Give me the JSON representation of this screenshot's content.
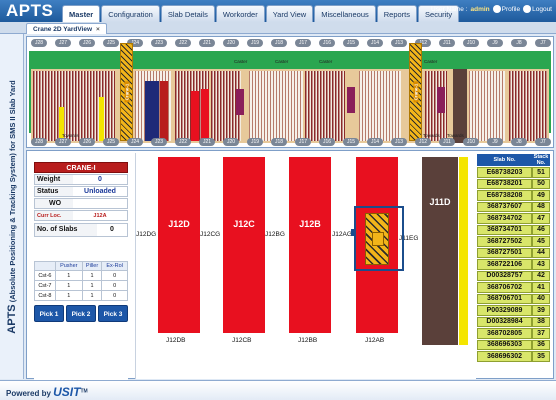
{
  "app": {
    "logo": "APTS"
  },
  "nav": {
    "tabs": [
      {
        "label": "Master",
        "active": true
      },
      {
        "label": "Configuration"
      },
      {
        "label": "Slab Details"
      },
      {
        "label": "Workorder"
      },
      {
        "label": "Yard View"
      },
      {
        "label": "Miscellaneous"
      },
      {
        "label": "Reports"
      },
      {
        "label": "Security"
      }
    ]
  },
  "user": {
    "label": "User Name :",
    "name": "admin",
    "profile": "Profile",
    "logout": "Logout"
  },
  "subtab": {
    "label": "Crane 2D YardView",
    "close": "×"
  },
  "side_title": {
    "brand": "APTS",
    "text": " (Absolute Positioning & Tracking System) for SMS II Slab Yard"
  },
  "yard": {
    "top_labels": [
      "J28",
      "J27",
      "J26",
      "J25",
      "J24",
      "J23",
      "J22",
      "J21",
      "J20",
      "J19",
      "J18",
      "J17",
      "J16",
      "J15",
      "J14",
      "J13",
      "J12",
      "J11",
      "J10",
      "J9",
      "J8",
      "J7"
    ],
    "bottom_labels": [
      "J28",
      "J27",
      "J26",
      "J25",
      "J24",
      "J23",
      "J22",
      "J21",
      "J20",
      "J19",
      "J18",
      "J17",
      "J16",
      "J15",
      "J14",
      "J13",
      "J12",
      "J11",
      "J10",
      "J9",
      "J8",
      "J7"
    ],
    "caster_labels": [
      "Caster",
      "Caster",
      "Caster",
      "Caster"
    ],
    "crane_labels": [
      "Crane-1",
      "Crane-1"
    ],
    "towards_labels": [
      "Towards",
      "Towards",
      "Towards"
    ]
  },
  "crane_info": {
    "title": "CRANE-I",
    "rows": [
      {
        "key": "Weight",
        "value": "0"
      },
      {
        "key": "Status",
        "value": "Unloaded"
      },
      {
        "key": "WO",
        "value": ""
      }
    ],
    "curr_loc_key": "Curr Loc.",
    "curr_loc_value": "J12A",
    "slabs_key": "No. of Slabs",
    "slabs_value": "0"
  },
  "cst_table": {
    "headers": [
      "",
      "Pusher",
      "Piller",
      "Ex-Rol"
    ],
    "rows": [
      [
        "Cst-6",
        "1",
        "1",
        "0"
      ],
      [
        "Cst-7",
        "1",
        "1",
        "0"
      ],
      [
        "Cst-8",
        "1",
        "1",
        "0"
      ]
    ]
  },
  "pick_buttons": [
    "Pick 1",
    "Pick 2",
    "Pick 3"
  ],
  "bay": {
    "stacks": [
      "J12D",
      "J12C",
      "J12B",
      "J11D"
    ],
    "side_labels": [
      "J12DG",
      "J12CG",
      "J12BG",
      "J12AG",
      "J11EG"
    ],
    "bottom_labels": [
      "J12DB",
      "J12CB",
      "J12BB",
      "J12AB"
    ]
  },
  "slab_list": {
    "headers": [
      "Slab No.",
      "Stack No."
    ],
    "rows": [
      [
        "E68738203",
        "51"
      ],
      [
        "E68738201",
        "50"
      ],
      [
        "E68738208",
        "49"
      ],
      [
        "368737607",
        "48"
      ],
      [
        "368734702",
        "47"
      ],
      [
        "368734701",
        "46"
      ],
      [
        "368727502",
        "45"
      ],
      [
        "368727501",
        "44"
      ],
      [
        "368722106",
        "43"
      ],
      [
        "D00328757",
        "42"
      ],
      [
        "368706702",
        "41"
      ],
      [
        "368706701",
        "40"
      ],
      [
        "P00329089",
        "39"
      ],
      [
        "D00328984",
        "38"
      ],
      [
        "368702805",
        "37"
      ],
      [
        "368696303",
        "36"
      ],
      [
        "368696302",
        "35"
      ]
    ]
  },
  "footer": {
    "powered": "Powered by",
    "brand": "USIT",
    "tm": "TM"
  },
  "colors": {
    "header": "#1e5a9c",
    "stack": "#e8101f",
    "slab_row": "#d9e66a",
    "crane": "#f2b51a"
  }
}
